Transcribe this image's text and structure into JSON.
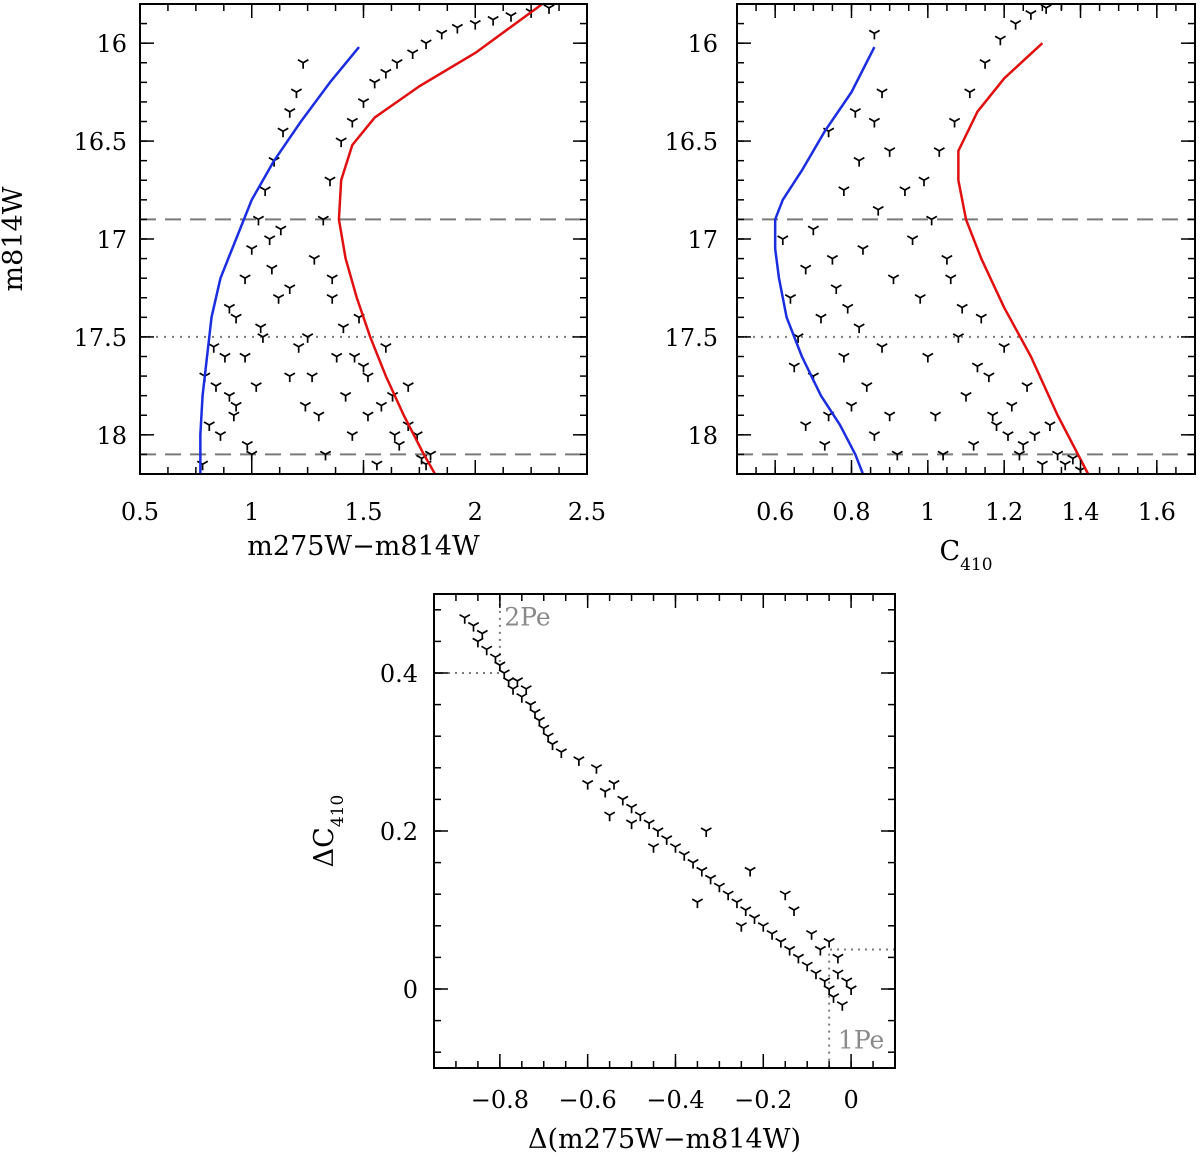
{
  "chart_data": [
    {
      "id": "left",
      "type": "scatter",
      "xlabel": "m275W−m814W",
      "ylabel": "m814W",
      "xlim": [
        0.5,
        2.5
      ],
      "ylim": [
        18.2,
        15.8
      ],
      "xticks": [
        0.5,
        1,
        1.5,
        2,
        2.5
      ],
      "xtick_labels": [
        "0.5",
        "1",
        "1.5",
        "2",
        "2.5"
      ],
      "yticks": [
        16,
        16.5,
        17,
        17.5,
        18
      ],
      "ytick_labels": [
        "16",
        "16.5",
        "17",
        "17.5",
        "18"
      ],
      "hlines_dashed": [
        16.9,
        18.1
      ],
      "hlines_dotted": [
        17.5
      ],
      "fiducial_blue": [
        [
          1.48,
          16.02
        ],
        [
          1.35,
          16.2
        ],
        [
          1.22,
          16.4
        ],
        [
          1.1,
          16.6
        ],
        [
          1.0,
          16.8
        ],
        [
          0.93,
          17.0
        ],
        [
          0.86,
          17.2
        ],
        [
          0.82,
          17.4
        ],
        [
          0.8,
          17.6
        ],
        [
          0.78,
          17.8
        ],
        [
          0.77,
          18.0
        ],
        [
          0.77,
          18.2
        ]
      ],
      "fiducial_red": [
        [
          2.3,
          15.8
        ],
        [
          2.0,
          16.05
        ],
        [
          1.75,
          16.22
        ],
        [
          1.55,
          16.38
        ],
        [
          1.45,
          16.52
        ],
        [
          1.4,
          16.7
        ],
        [
          1.39,
          16.9
        ],
        [
          1.42,
          17.1
        ],
        [
          1.47,
          17.3
        ],
        [
          1.53,
          17.5
        ],
        [
          1.6,
          17.7
        ],
        [
          1.68,
          17.9
        ],
        [
          1.77,
          18.1
        ],
        [
          1.82,
          18.2
        ]
      ],
      "series": [
        {
          "x": [
            0.78,
            0.81,
            0.84,
            0.88,
            0.9,
            0.93,
            0.97,
            1.0,
            1.03,
            1.06,
            1.1,
            1.14,
            1.17,
            1.2,
            1.23,
            0.79,
            0.83,
            0.86,
            0.9,
            0.93,
            0.97,
            1.0,
            1.04,
            1.08,
            1.12,
            1.17,
            0.92,
            0.98,
            1.02,
            1.05,
            1.09,
            1.13,
            1.17,
            1.21,
            1.24
          ],
          "y": [
            18.15,
            17.95,
            17.75,
            17.6,
            17.8,
            17.4,
            17.2,
            17.05,
            16.9,
            16.75,
            16.6,
            16.45,
            16.35,
            16.25,
            16.1,
            17.7,
            17.55,
            18.0,
            17.35,
            17.85,
            17.6,
            18.1,
            17.45,
            17.0,
            17.3,
            17.7,
            17.9,
            18.05,
            17.75,
            17.5,
            17.15,
            16.95,
            17.25,
            17.55,
            17.85
          ]
        },
        {
          "x": [
            1.25,
            1.27,
            1.3,
            1.33,
            1.36,
            1.38,
            1.42,
            1.45,
            1.48,
            1.5,
            1.52,
            1.56,
            1.6,
            1.63,
            1.66,
            1.7,
            1.74,
            1.78,
            1.8,
            1.28,
            1.32,
            1.36,
            1.41,
            1.46,
            1.52,
            1.58,
            1.64,
            1.7,
            1.76,
            1.35,
            1.4,
            1.45,
            1.5,
            1.55,
            1.6,
            1.65,
            1.72,
            1.78,
            1.85,
            1.92,
            2.0,
            2.08,
            2.16,
            2.25,
            2.33
          ],
          "y": [
            17.5,
            17.7,
            17.9,
            18.1,
            17.3,
            17.6,
            17.8,
            18.0,
            17.4,
            17.65,
            17.9,
            18.15,
            17.55,
            17.8,
            18.05,
            17.75,
            18.0,
            18.15,
            18.1,
            17.1,
            16.9,
            17.2,
            17.45,
            17.6,
            17.7,
            17.85,
            18.0,
            17.95,
            18.12,
            16.7,
            16.5,
            16.4,
            16.3,
            16.2,
            16.15,
            16.1,
            16.05,
            16.0,
            15.95,
            15.92,
            15.9,
            15.88,
            15.86,
            15.84,
            15.82
          ]
        }
      ]
    },
    {
      "id": "right",
      "type": "scatter",
      "xlabel": "C",
      "xlabel_sub": "410",
      "ylabel": "",
      "xlim": [
        0.5,
        1.7
      ],
      "ylim": [
        18.2,
        15.8
      ],
      "xticks": [
        0.6,
        0.8,
        1,
        1.2,
        1.4,
        1.6
      ],
      "xtick_labels": [
        "0.6",
        "0.8",
        "1",
        "1.2",
        "1.4",
        "1.6"
      ],
      "yticks": [
        16,
        16.5,
        17,
        17.5,
        18
      ],
      "ytick_labels": [
        "16",
        "16.5",
        "17",
        "17.5",
        "18"
      ],
      "hlines_dashed": [
        16.9,
        18.1
      ],
      "hlines_dotted": [
        17.5
      ],
      "fiducial_blue": [
        [
          0.86,
          16.02
        ],
        [
          0.8,
          16.25
        ],
        [
          0.73,
          16.45
        ],
        [
          0.67,
          16.65
        ],
        [
          0.62,
          16.8
        ],
        [
          0.6,
          16.9
        ],
        [
          0.6,
          17.05
        ],
        [
          0.61,
          17.2
        ],
        [
          0.63,
          17.4
        ],
        [
          0.67,
          17.6
        ],
        [
          0.72,
          17.8
        ],
        [
          0.77,
          17.95
        ],
        [
          0.81,
          18.1
        ],
        [
          0.83,
          18.2
        ]
      ],
      "fiducial_red": [
        [
          1.3,
          16.0
        ],
        [
          1.2,
          16.18
        ],
        [
          1.13,
          16.35
        ],
        [
          1.08,
          16.55
        ],
        [
          1.08,
          16.7
        ],
        [
          1.1,
          16.9
        ],
        [
          1.14,
          17.1
        ],
        [
          1.2,
          17.35
        ],
        [
          1.27,
          17.6
        ],
        [
          1.34,
          17.9
        ],
        [
          1.42,
          18.2
        ]
      ],
      "series": [
        {
          "x": [
            0.62,
            0.64,
            0.66,
            0.68,
            0.7,
            0.72,
            0.74,
            0.76,
            0.78,
            0.8,
            0.82,
            0.84,
            0.86,
            0.88,
            0.9,
            0.92,
            0.65,
            0.7,
            0.75,
            0.79,
            0.83,
            0.87,
            0.91,
            0.68,
            0.73,
            0.78,
            0.82,
            0.86,
            0.9,
            0.94,
            0.74,
            0.81,
            0.88,
            0.86
          ],
          "y": [
            17.0,
            17.3,
            17.5,
            17.15,
            17.7,
            17.4,
            17.9,
            17.25,
            17.6,
            17.85,
            17.45,
            17.75,
            18.0,
            17.55,
            17.9,
            18.1,
            17.65,
            16.95,
            17.1,
            17.35,
            17.05,
            16.85,
            17.2,
            17.95,
            18.05,
            16.75,
            16.6,
            16.4,
            16.55,
            16.75,
            16.45,
            16.35,
            16.25,
            15.95
          ],
          "name": ""
        },
        {
          "x": [
            0.96,
            0.98,
            1.0,
            1.02,
            1.04,
            1.06,
            1.08,
            1.1,
            1.12,
            1.14,
            1.16,
            1.18,
            1.2,
            1.22,
            1.24,
            1.26,
            1.28,
            1.3,
            1.32,
            1.34,
            1.36,
            1.38,
            1.4,
            0.99,
            1.03,
            1.07,
            1.11,
            1.15,
            1.19,
            1.23,
            1.27,
            1.31,
            1.35,
            1.01,
            1.05,
            1.09,
            1.13,
            1.17,
            1.21,
            1.25
          ],
          "y": [
            17.0,
            17.3,
            17.6,
            17.9,
            18.1,
            17.2,
            17.5,
            17.8,
            18.05,
            17.4,
            17.7,
            17.95,
            17.55,
            17.85,
            18.1,
            17.75,
            18.0,
            18.15,
            17.95,
            18.1,
            18.15,
            18.12,
            18.18,
            16.7,
            16.55,
            16.4,
            16.25,
            16.1,
            15.98,
            15.9,
            15.85,
            15.82,
            15.8,
            16.9,
            17.1,
            17.35,
            17.65,
            17.9,
            18.0,
            18.05
          ]
        }
      ]
    },
    {
      "id": "bottom",
      "type": "scatter",
      "xlabel": "Δ(m275W−m814W)",
      "ylabel": "ΔC",
      "ylabel_sub": "410",
      "xlim": [
        -0.95,
        0.1
      ],
      "ylim": [
        -0.1,
        0.5
      ],
      "xticks": [
        -0.8,
        -0.6,
        -0.4,
        -0.2,
        0
      ],
      "xtick_labels": [
        "−0.8",
        "−0.6",
        "−0.4",
        "−0.2",
        "0"
      ],
      "yticks": [
        0,
        0.2,
        0.4
      ],
      "ytick_labels": [
        "0",
        "0.2",
        "0.4"
      ],
      "annotations": [
        {
          "text": "2Pe",
          "x": -0.79,
          "y": 0.46
        },
        {
          "text": "1Pe",
          "x": -0.03,
          "y": -0.075
        }
      ],
      "region_2pe": {
        "x": -0.8,
        "y": 0.4
      },
      "region_1pe": {
        "x": -0.05,
        "y": 0.05
      },
      "series": [
        {
          "x": [
            -0.88,
            -0.86,
            -0.85,
            -0.84,
            -0.83,
            -0.81,
            -0.8,
            -0.79,
            -0.78,
            -0.77,
            -0.76,
            -0.75,
            -0.74,
            -0.73,
            -0.72,
            -0.71,
            -0.7,
            -0.69,
            -0.68,
            -0.66,
            -0.62,
            -0.58,
            -0.56,
            -0.54,
            -0.52,
            -0.5,
            -0.48,
            -0.46,
            -0.44,
            -0.42,
            -0.4,
            -0.38,
            -0.36,
            -0.34,
            -0.32,
            -0.3,
            -0.28,
            -0.26,
            -0.24,
            -0.22,
            -0.2,
            -0.18,
            -0.16,
            -0.14,
            -0.12,
            -0.1,
            -0.08,
            -0.06,
            -0.05,
            -0.04,
            -0.03,
            -0.02,
            -0.01,
            0.0,
            -0.55,
            -0.45,
            -0.35,
            -0.25,
            -0.15,
            -0.05,
            -0.33,
            -0.23,
            -0.13,
            -0.09,
            -0.07,
            -0.03,
            -0.6,
            -0.5
          ],
          "y": [
            0.47,
            0.46,
            0.44,
            0.45,
            0.43,
            0.42,
            0.41,
            0.4,
            0.39,
            0.38,
            0.39,
            0.37,
            0.38,
            0.36,
            0.35,
            0.34,
            0.33,
            0.32,
            0.31,
            0.3,
            0.29,
            0.28,
            0.25,
            0.26,
            0.24,
            0.23,
            0.22,
            0.21,
            0.2,
            0.19,
            0.18,
            0.17,
            0.16,
            0.15,
            0.14,
            0.13,
            0.12,
            0.11,
            0.1,
            0.09,
            0.08,
            0.07,
            0.06,
            0.05,
            0.04,
            0.03,
            0.02,
            0.01,
            0.0,
            -0.01,
            0.02,
            -0.02,
            0.01,
            0.0,
            0.22,
            0.18,
            0.11,
            0.08,
            0.12,
            0.06,
            0.2,
            0.15,
            0.1,
            0.07,
            0.05,
            0.04,
            0.26,
            0.21
          ]
        }
      ]
    }
  ]
}
